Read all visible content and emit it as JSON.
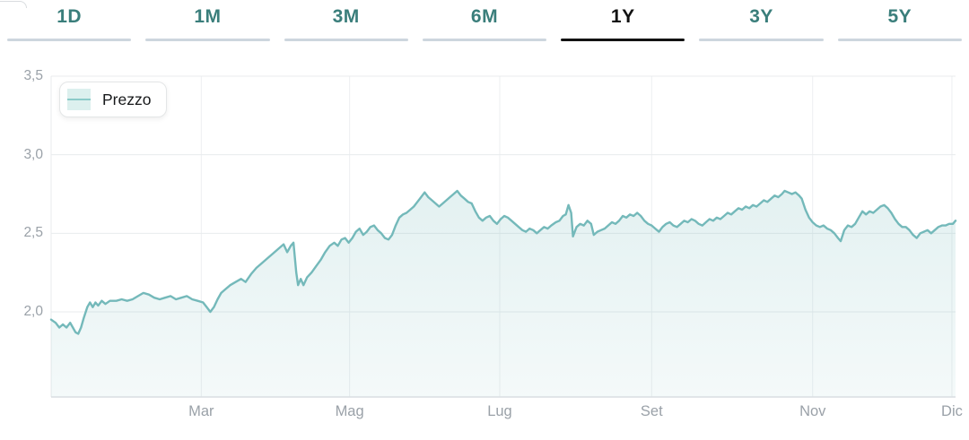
{
  "tabs": {
    "items": [
      {
        "label": "1D",
        "active": false
      },
      {
        "label": "1M",
        "active": false
      },
      {
        "label": "3M",
        "active": false
      },
      {
        "label": "6M",
        "active": false
      },
      {
        "label": "1Y",
        "active": true
      },
      {
        "label": "3Y",
        "active": false
      },
      {
        "label": "5Y",
        "active": false
      }
    ]
  },
  "legend": {
    "label": "Prezzo"
  },
  "colors": {
    "tab_text": "#3a7e7b",
    "tab_text_active": "#121212",
    "tab_underline": "#cdd6de",
    "tab_underline_active": "#121212",
    "line": "#74b9ba",
    "fill_top": "rgba(116,185,186,0.20)",
    "fill_bottom": "rgba(116,185,186,0.08)",
    "grid": "#edeff1",
    "plot_border": "#e8ebed",
    "axis_line": "#d9dee2",
    "axis_text": "#9aa1a8"
  },
  "chart_data": {
    "type": "area",
    "title": "Prezzo (1Y)",
    "xlabel": "",
    "ylabel": "",
    "decimal_style": "comma",
    "grid": true,
    "legend_position": "top-left",
    "ylim": [
      1.458,
      3.5
    ],
    "y_ticks": [
      {
        "label": "3,5",
        "value": 3.5
      },
      {
        "label": "3,0",
        "value": 3.0
      },
      {
        "label": "2,5",
        "value": 2.5
      },
      {
        "label": "2,0",
        "value": 2.0
      }
    ],
    "x_ticks": [
      {
        "label": "Mar",
        "f": 0.166
      },
      {
        "label": "Mag",
        "f": 0.33
      },
      {
        "label": "Lug",
        "f": 0.496
      },
      {
        "label": "Set",
        "f": 0.664
      },
      {
        "label": "Nov",
        "f": 0.842
      },
      {
        "label": "Dic",
        "f": 0.996
      }
    ],
    "series": [
      {
        "name": "Prezzo",
        "points": [
          [
            0.0,
            1.95
          ],
          [
            0.005,
            1.93
          ],
          [
            0.009,
            1.9
          ],
          [
            0.013,
            1.92
          ],
          [
            0.017,
            1.9
          ],
          [
            0.021,
            1.93
          ],
          [
            0.024,
            1.9
          ],
          [
            0.027,
            1.87
          ],
          [
            0.03,
            1.86
          ],
          [
            0.033,
            1.9
          ],
          [
            0.036,
            1.96
          ],
          [
            0.04,
            2.03
          ],
          [
            0.043,
            2.06
          ],
          [
            0.046,
            2.03
          ],
          [
            0.049,
            2.06
          ],
          [
            0.052,
            2.04
          ],
          [
            0.056,
            2.07
          ],
          [
            0.06,
            2.05
          ],
          [
            0.065,
            2.07
          ],
          [
            0.072,
            2.07
          ],
          [
            0.078,
            2.08
          ],
          [
            0.084,
            2.07
          ],
          [
            0.09,
            2.08
          ],
          [
            0.096,
            2.1
          ],
          [
            0.102,
            2.12
          ],
          [
            0.108,
            2.11
          ],
          [
            0.114,
            2.09
          ],
          [
            0.12,
            2.08
          ],
          [
            0.126,
            2.09
          ],
          [
            0.132,
            2.1
          ],
          [
            0.138,
            2.08
          ],
          [
            0.144,
            2.09
          ],
          [
            0.15,
            2.1
          ],
          [
            0.156,
            2.08
          ],
          [
            0.162,
            2.07
          ],
          [
            0.168,
            2.06
          ],
          [
            0.172,
            2.03
          ],
          [
            0.176,
            2.0
          ],
          [
            0.18,
            2.03
          ],
          [
            0.184,
            2.08
          ],
          [
            0.188,
            2.12
          ],
          [
            0.192,
            2.14
          ],
          [
            0.198,
            2.17
          ],
          [
            0.204,
            2.19
          ],
          [
            0.21,
            2.21
          ],
          [
            0.215,
            2.19
          ],
          [
            0.221,
            2.24
          ],
          [
            0.227,
            2.28
          ],
          [
            0.233,
            2.31
          ],
          [
            0.239,
            2.34
          ],
          [
            0.245,
            2.37
          ],
          [
            0.251,
            2.4
          ],
          [
            0.257,
            2.43
          ],
          [
            0.261,
            2.38
          ],
          [
            0.265,
            2.42
          ],
          [
            0.268,
            2.44
          ],
          [
            0.271,
            2.25
          ],
          [
            0.273,
            2.17
          ],
          [
            0.276,
            2.21
          ],
          [
            0.279,
            2.17
          ],
          [
            0.283,
            2.22
          ],
          [
            0.288,
            2.25
          ],
          [
            0.293,
            2.29
          ],
          [
            0.298,
            2.33
          ],
          [
            0.303,
            2.38
          ],
          [
            0.308,
            2.42
          ],
          [
            0.313,
            2.44
          ],
          [
            0.317,
            2.42
          ],
          [
            0.321,
            2.46
          ],
          [
            0.325,
            2.47
          ],
          [
            0.329,
            2.44
          ],
          [
            0.333,
            2.47
          ],
          [
            0.337,
            2.51
          ],
          [
            0.341,
            2.53
          ],
          [
            0.345,
            2.49
          ],
          [
            0.349,
            2.51
          ],
          [
            0.353,
            2.54
          ],
          [
            0.357,
            2.55
          ],
          [
            0.361,
            2.52
          ],
          [
            0.365,
            2.5
          ],
          [
            0.369,
            2.47
          ],
          [
            0.373,
            2.46
          ],
          [
            0.377,
            2.49
          ],
          [
            0.381,
            2.55
          ],
          [
            0.385,
            2.6
          ],
          [
            0.389,
            2.62
          ],
          [
            0.393,
            2.63
          ],
          [
            0.397,
            2.65
          ],
          [
            0.401,
            2.67
          ],
          [
            0.405,
            2.7
          ],
          [
            0.409,
            2.73
          ],
          [
            0.413,
            2.76
          ],
          [
            0.417,
            2.73
          ],
          [
            0.421,
            2.71
          ],
          [
            0.425,
            2.69
          ],
          [
            0.429,
            2.67
          ],
          [
            0.433,
            2.69
          ],
          [
            0.437,
            2.71
          ],
          [
            0.441,
            2.73
          ],
          [
            0.445,
            2.75
          ],
          [
            0.449,
            2.77
          ],
          [
            0.453,
            2.74
          ],
          [
            0.457,
            2.72
          ],
          [
            0.461,
            2.7
          ],
          [
            0.465,
            2.69
          ],
          [
            0.469,
            2.64
          ],
          [
            0.473,
            2.6
          ],
          [
            0.477,
            2.58
          ],
          [
            0.481,
            2.6
          ],
          [
            0.485,
            2.61
          ],
          [
            0.489,
            2.58
          ],
          [
            0.493,
            2.56
          ],
          [
            0.497,
            2.59
          ],
          [
            0.501,
            2.61
          ],
          [
            0.505,
            2.6
          ],
          [
            0.509,
            2.58
          ],
          [
            0.513,
            2.56
          ],
          [
            0.517,
            2.54
          ],
          [
            0.521,
            2.52
          ],
          [
            0.525,
            2.51
          ],
          [
            0.529,
            2.53
          ],
          [
            0.533,
            2.52
          ],
          [
            0.537,
            2.5
          ],
          [
            0.541,
            2.52
          ],
          [
            0.545,
            2.54
          ],
          [
            0.549,
            2.53
          ],
          [
            0.553,
            2.55
          ],
          [
            0.558,
            2.57
          ],
          [
            0.562,
            2.58
          ],
          [
            0.566,
            2.61
          ],
          [
            0.569,
            2.62
          ],
          [
            0.572,
            2.68
          ],
          [
            0.575,
            2.63
          ],
          [
            0.577,
            2.48
          ],
          [
            0.581,
            2.54
          ],
          [
            0.585,
            2.56
          ],
          [
            0.589,
            2.55
          ],
          [
            0.593,
            2.58
          ],
          [
            0.597,
            2.56
          ],
          [
            0.6,
            2.49
          ],
          [
            0.604,
            2.51
          ],
          [
            0.608,
            2.52
          ],
          [
            0.612,
            2.53
          ],
          [
            0.616,
            2.55
          ],
          [
            0.62,
            2.57
          ],
          [
            0.624,
            2.56
          ],
          [
            0.628,
            2.58
          ],
          [
            0.632,
            2.61
          ],
          [
            0.636,
            2.6
          ],
          [
            0.64,
            2.62
          ],
          [
            0.644,
            2.61
          ],
          [
            0.648,
            2.63
          ],
          [
            0.652,
            2.61
          ],
          [
            0.656,
            2.58
          ],
          [
            0.66,
            2.56
          ],
          [
            0.664,
            2.55
          ],
          [
            0.668,
            2.53
          ],
          [
            0.672,
            2.51
          ],
          [
            0.676,
            2.54
          ],
          [
            0.68,
            2.56
          ],
          [
            0.684,
            2.57
          ],
          [
            0.688,
            2.55
          ],
          [
            0.692,
            2.54
          ],
          [
            0.696,
            2.56
          ],
          [
            0.7,
            2.58
          ],
          [
            0.704,
            2.57
          ],
          [
            0.708,
            2.59
          ],
          [
            0.712,
            2.58
          ],
          [
            0.716,
            2.56
          ],
          [
            0.72,
            2.55
          ],
          [
            0.724,
            2.57
          ],
          [
            0.728,
            2.59
          ],
          [
            0.732,
            2.58
          ],
          [
            0.736,
            2.6
          ],
          [
            0.74,
            2.59
          ],
          [
            0.744,
            2.61
          ],
          [
            0.748,
            2.63
          ],
          [
            0.752,
            2.62
          ],
          [
            0.756,
            2.64
          ],
          [
            0.76,
            2.66
          ],
          [
            0.764,
            2.65
          ],
          [
            0.768,
            2.67
          ],
          [
            0.772,
            2.66
          ],
          [
            0.776,
            2.68
          ],
          [
            0.78,
            2.67
          ],
          [
            0.784,
            2.69
          ],
          [
            0.788,
            2.71
          ],
          [
            0.792,
            2.7
          ],
          [
            0.796,
            2.72
          ],
          [
            0.8,
            2.74
          ],
          [
            0.804,
            2.73
          ],
          [
            0.808,
            2.75
          ],
          [
            0.811,
            2.77
          ],
          [
            0.815,
            2.76
          ],
          [
            0.819,
            2.75
          ],
          [
            0.823,
            2.76
          ],
          [
            0.827,
            2.74
          ],
          [
            0.83,
            2.72
          ],
          [
            0.834,
            2.65
          ],
          [
            0.838,
            2.6
          ],
          [
            0.842,
            2.57
          ],
          [
            0.846,
            2.55
          ],
          [
            0.85,
            2.54
          ],
          [
            0.854,
            2.55
          ],
          [
            0.858,
            2.53
          ],
          [
            0.862,
            2.52
          ],
          [
            0.866,
            2.5
          ],
          [
            0.87,
            2.47
          ],
          [
            0.873,
            2.45
          ],
          [
            0.877,
            2.52
          ],
          [
            0.881,
            2.55
          ],
          [
            0.885,
            2.54
          ],
          [
            0.889,
            2.56
          ],
          [
            0.893,
            2.6
          ],
          [
            0.897,
            2.64
          ],
          [
            0.901,
            2.62
          ],
          [
            0.905,
            2.64
          ],
          [
            0.909,
            2.63
          ],
          [
            0.913,
            2.65
          ],
          [
            0.917,
            2.67
          ],
          [
            0.921,
            2.68
          ],
          [
            0.925,
            2.66
          ],
          [
            0.929,
            2.63
          ],
          [
            0.933,
            2.59
          ],
          [
            0.937,
            2.56
          ],
          [
            0.941,
            2.54
          ],
          [
            0.945,
            2.54
          ],
          [
            0.949,
            2.52
          ],
          [
            0.953,
            2.49
          ],
          [
            0.957,
            2.47
          ],
          [
            0.961,
            2.5
          ],
          [
            0.965,
            2.51
          ],
          [
            0.969,
            2.52
          ],
          [
            0.973,
            2.5
          ],
          [
            0.977,
            2.52
          ],
          [
            0.981,
            2.54
          ],
          [
            0.985,
            2.55
          ],
          [
            0.989,
            2.55
          ],
          [
            0.993,
            2.56
          ],
          [
            0.997,
            2.56
          ],
          [
            1.0,
            2.58
          ]
        ]
      }
    ]
  }
}
